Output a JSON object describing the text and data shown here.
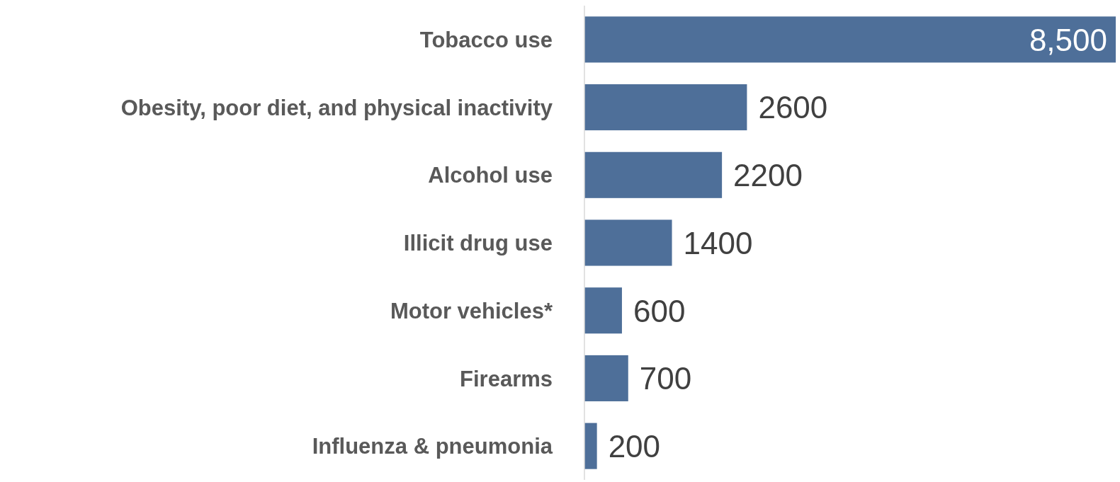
{
  "chart_data": {
    "type": "bar",
    "orientation": "horizontal",
    "categories": [
      "Tobacco use",
      "Obesity, poor diet, and physical inactivity",
      "Alcohol use",
      "Illicit drug use",
      "Motor vehicles*",
      "Firearms",
      "Influenza & pneumonia"
    ],
    "values": [
      8500,
      2600,
      2200,
      1400,
      600,
      700,
      200
    ],
    "value_labels": [
      "8,500",
      "2600",
      "2200",
      "1400",
      "600",
      "700",
      "200"
    ],
    "color": "#4e6f99"
  }
}
